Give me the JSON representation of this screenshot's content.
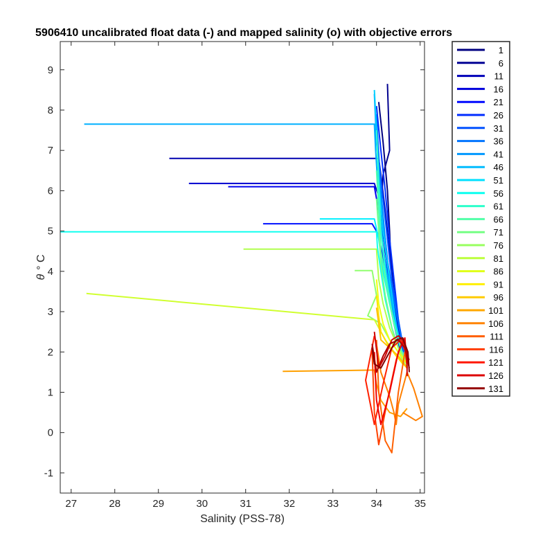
{
  "chart_data": {
    "type": "line",
    "title": "5906410 uncalibrated float data (-) and mapped salinity (o) with objective errors",
    "xlabel": "Salinity (PSS-78)",
    "ylabel_symbol": "θ",
    "ylabel_unit": "° C",
    "xlim": [
      26.75,
      35.1
    ],
    "ylim": [
      -1.5,
      9.7
    ],
    "xticks": [
      27,
      28,
      29,
      30,
      31,
      32,
      33,
      34,
      35
    ],
    "yticks": [
      -1,
      0,
      1,
      2,
      3,
      4,
      5,
      6,
      7,
      8,
      9
    ],
    "grid": false,
    "legend_position": "outside-right",
    "colormap": "jet",
    "series": [
      {
        "name": "1",
        "color": "#000080",
        "x": [
          34.05,
          34.15,
          34.25,
          34.3,
          34.32,
          34.35,
          34.4,
          34.45,
          34.5,
          34.55,
          34.6
        ],
        "y": [
          8.2,
          7.2,
          6.0,
          5.0,
          4.4,
          4.0,
          3.5,
          3.0,
          2.6,
          2.3,
          2.0
        ]
      },
      {
        "name": "6",
        "color": "#00008F",
        "x": [
          34.25,
          34.3,
          34.15,
          34.1,
          34.2,
          34.35,
          34.45,
          34.6
        ],
        "y": [
          8.65,
          7.0,
          6.4,
          5.5,
          4.5,
          3.5,
          2.8,
          2.0
        ]
      },
      {
        "name": "11",
        "color": "#0000AF",
        "x": [
          29.25,
          34.05,
          34.1,
          34.2,
          34.3,
          34.4,
          34.5,
          34.6
        ],
        "y": [
          6.8,
          6.8,
          6.4,
          5.5,
          4.5,
          3.4,
          2.6,
          1.9
        ]
      },
      {
        "name": "16",
        "color": "#0000CF",
        "x": [
          29.7,
          33.95,
          34.1,
          34.2,
          34.3,
          34.45,
          34.6
        ],
        "y": [
          6.18,
          6.18,
          5.7,
          4.8,
          3.8,
          2.8,
          1.9
        ]
      },
      {
        "name": "21",
        "color": "#0000EF",
        "x": [
          30.6,
          33.95,
          34.05,
          34.2,
          34.3,
          34.4,
          34.55
        ],
        "y": [
          6.1,
          6.1,
          5.5,
          4.6,
          3.6,
          2.8,
          2.0
        ]
      },
      {
        "name": "26",
        "color": "#0010FF",
        "x": [
          31.4,
          33.9,
          34.05,
          34.15,
          34.25,
          34.4,
          34.55
        ],
        "y": [
          5.18,
          5.18,
          4.9,
          4.3,
          3.5,
          2.7,
          2.0
        ]
      },
      {
        "name": "31",
        "color": "#0030FF",
        "x": [
          34.0,
          34.1,
          34.2,
          34.3,
          34.4,
          34.5,
          34.6
        ],
        "y": [
          8.1,
          7.0,
          6.0,
          4.8,
          3.8,
          2.8,
          2.0
        ]
      },
      {
        "name": "36",
        "color": "#0050FF",
        "x": [
          34.0,
          34.05,
          34.15,
          34.25,
          34.35,
          34.5,
          34.65
        ],
        "y": [
          7.9,
          6.8,
          5.8,
          4.8,
          3.8,
          2.8,
          1.9
        ]
      },
      {
        "name": "41",
        "color": "#0070FF",
        "x": [
          34.0,
          34.05,
          34.1,
          34.2,
          34.35,
          34.5,
          34.65
        ],
        "y": [
          7.7,
          6.9,
          5.8,
          4.6,
          3.6,
          2.7,
          1.9
        ]
      },
      {
        "name": "46",
        "color": "#0090FF",
        "x": [
          33.95,
          34.0,
          34.1,
          34.2,
          34.3,
          34.45,
          34.6
        ],
        "y": [
          8.4,
          7.2,
          6.0,
          4.8,
          3.7,
          2.7,
          1.9
        ]
      },
      {
        "name": "51",
        "color": "#00B0FF",
        "x": [
          27.3,
          33.95,
          33.98,
          34.05,
          34.15,
          34.3,
          34.45,
          34.6
        ],
        "y": [
          7.65,
          7.65,
          7.0,
          5.8,
          4.6,
          3.5,
          2.6,
          1.9
        ]
      },
      {
        "name": "56",
        "color": "#00D0FF",
        "x": [
          33.95,
          34.0,
          34.05,
          34.15,
          34.3,
          34.45,
          34.6
        ],
        "y": [
          8.5,
          7.5,
          6.2,
          5.0,
          3.8,
          2.7,
          1.9
        ]
      },
      {
        "name": "61",
        "color": "#00F0FF",
        "x": [
          32.7,
          33.95,
          34.05,
          34.15,
          34.3,
          34.45,
          34.6
        ],
        "y": [
          5.3,
          5.3,
          4.8,
          4.0,
          3.2,
          2.5,
          1.9
        ]
      },
      {
        "name": "66",
        "color": "#10FFEF",
        "x": [
          26.75,
          34.0,
          34.02,
          34.1,
          34.2,
          34.35,
          34.5,
          34.65
        ],
        "y": [
          4.98,
          4.98,
          4.6,
          4.0,
          3.3,
          2.6,
          2.1,
          1.8
        ]
      },
      {
        "name": "71",
        "color": "#30FFCF",
        "x": [
          34.0,
          34.05,
          34.1,
          34.2,
          34.35,
          34.5,
          34.65
        ],
        "y": [
          7.5,
          6.2,
          5.0,
          4.0,
          3.0,
          2.3,
          1.8
        ]
      },
      {
        "name": "76",
        "color": "#50FFAF",
        "x": [
          34.0,
          34.05,
          34.1,
          34.25,
          34.4,
          34.55,
          34.7
        ],
        "y": [
          6.5,
          5.5,
          4.5,
          3.5,
          2.7,
          2.1,
          1.7
        ]
      },
      {
        "name": "81",
        "color": "#70FF8F",
        "x": [
          34.0,
          34.05,
          34.1,
          34.2,
          34.35,
          34.5,
          34.65
        ],
        "y": [
          5.8,
          5.0,
          4.2,
          3.4,
          2.6,
          2.1,
          1.7
        ]
      },
      {
        "name": "86",
        "color": "#90FF6F",
        "x": [
          33.5,
          33.9,
          34.0,
          33.8,
          34.1,
          34.3,
          34.5,
          34.7
        ],
        "y": [
          4.02,
          4.02,
          3.4,
          2.9,
          2.7,
          2.3,
          2.0,
          1.6
        ]
      },
      {
        "name": "91",
        "color": "#B0FF4F",
        "x": [
          30.95,
          34.0,
          34.05,
          34.15,
          34.3,
          34.5,
          34.7
        ],
        "y": [
          4.55,
          4.55,
          3.8,
          3.2,
          2.6,
          2.1,
          1.7
        ]
      },
      {
        "name": "96",
        "color": "#D0FF2F",
        "x": [
          27.35,
          33.95,
          34.05,
          34.2,
          34.4,
          34.6
        ],
        "y": [
          3.45,
          2.8,
          2.6,
          2.3,
          2.0,
          1.7
        ]
      },
      {
        "name": "101",
        "color": "#F0FF0F",
        "x": [
          34.0,
          34.05,
          34.15,
          34.3,
          34.5,
          34.7
        ],
        "y": [
          3.8,
          3.2,
          2.7,
          2.3,
          2.0,
          1.7
        ]
      },
      {
        "name": "106",
        "color": "#FFE000",
        "x": [
          34.0,
          34.05,
          34.1,
          34.25,
          34.45,
          34.7
        ],
        "y": [
          3.4,
          2.9,
          2.5,
          2.2,
          1.9,
          1.6
        ]
      },
      {
        "name": "111",
        "color": "#FFC000",
        "x": [
          34.0,
          34.05,
          34.1,
          34.3,
          34.5,
          34.7
        ],
        "y": [
          3.1,
          2.7,
          2.3,
          2.1,
          1.9,
          1.6
        ]
      },
      {
        "name": "116",
        "color": "#FFA000",
        "x": [
          31.85,
          33.95,
          34.0,
          34.1,
          34.3,
          34.55,
          34.7
        ],
        "y": [
          1.52,
          1.55,
          1.2,
          0.8,
          0.5,
          0.4,
          0.6
        ]
      },
      {
        "name": "121",
        "color": "#FF8000",
        "x": [
          34.0,
          34.1,
          34.3,
          34.4,
          34.45,
          34.5,
          34.7,
          34.85,
          35.05,
          34.9,
          34.6
        ],
        "y": [
          2.2,
          1.5,
          0.9,
          0.5,
          0.2,
          0.7,
          1.5,
          1.1,
          0.4,
          0.3,
          0.5
        ]
      },
      {
        "name": "126",
        "color": "#FF6000",
        "x": [
          34.0,
          34.05,
          34.2,
          34.35,
          34.5,
          34.65,
          34.7
        ],
        "y": [
          2.3,
          1.0,
          -0.2,
          -0.5,
          1.0,
          2.0,
          1.7
        ]
      },
      {
        "name": "131",
        "color": "#FF4000",
        "x": [
          33.9,
          33.95,
          34.05,
          34.25,
          34.45,
          34.6,
          34.7
        ],
        "y": [
          2.0,
          0.5,
          -0.3,
          0.8,
          1.8,
          2.3,
          1.9
        ]
      },
      {
        "name": "",
        "color": "#FF2000",
        "x": [
          33.95,
          33.75,
          33.95,
          34.15,
          34.35,
          34.55,
          34.75
        ],
        "y": [
          2.4,
          1.3,
          0.2,
          1.2,
          2.1,
          2.3,
          1.8
        ]
      },
      {
        "name": "",
        "color": "#EF0000",
        "x": [
          33.95,
          34.0,
          34.1,
          34.3,
          34.5,
          34.65,
          34.7
        ],
        "y": [
          2.0,
          0.8,
          0.2,
          1.0,
          2.0,
          2.35,
          1.6
        ]
      },
      {
        "name": "",
        "color": "#CF0000",
        "x": [
          33.95,
          34.05,
          34.2,
          34.35,
          34.5,
          34.6,
          34.7,
          34.7
        ],
        "y": [
          2.5,
          1.6,
          1.9,
          2.3,
          2.4,
          2.3,
          2.0,
          1.4
        ]
      },
      {
        "name": "",
        "color": "#AF0000",
        "x": [
          33.9,
          34.0,
          34.15,
          34.3,
          34.5,
          34.65,
          34.75
        ],
        "y": [
          2.2,
          1.5,
          1.9,
          2.2,
          2.3,
          2.1,
          1.6
        ]
      },
      {
        "name": "",
        "color": "#800000",
        "x": [
          33.9,
          33.95,
          34.1,
          34.3,
          34.45,
          34.6,
          34.72,
          34.75
        ],
        "y": [
          2.1,
          1.7,
          1.6,
          2.0,
          2.3,
          2.35,
          2.0,
          1.5
        ]
      }
    ],
    "legend_entries": [
      {
        "label": "1",
        "color": "#000080"
      },
      {
        "label": "6",
        "color": "#000094"
      },
      {
        "label": "11",
        "color": "#0000B8"
      },
      {
        "label": "16",
        "color": "#0000DC"
      },
      {
        "label": "21",
        "color": "#0008FF"
      },
      {
        "label": "26",
        "color": "#002CFF"
      },
      {
        "label": "31",
        "color": "#0050FF"
      },
      {
        "label": "36",
        "color": "#0074FF"
      },
      {
        "label": "41",
        "color": "#0098FF"
      },
      {
        "label": "46",
        "color": "#00BCFF"
      },
      {
        "label": "51",
        "color": "#00E0FF"
      },
      {
        "label": "56",
        "color": "#08FFEF"
      },
      {
        "label": "61",
        "color": "#2CFFCB"
      },
      {
        "label": "66",
        "color": "#50FFA7"
      },
      {
        "label": "71",
        "color": "#74FF83"
      },
      {
        "label": "76",
        "color": "#98FF5F"
      },
      {
        "label": "81",
        "color": "#BCFF3B"
      },
      {
        "label": "86",
        "color": "#E0FF17"
      },
      {
        "label": "91",
        "color": "#FFEF00"
      },
      {
        "label": "96",
        "color": "#FFCB00"
      },
      {
        "label": "101",
        "color": "#FFA700"
      },
      {
        "label": "106",
        "color": "#FF8300"
      },
      {
        "label": "111",
        "color": "#FF5F00"
      },
      {
        "label": "116",
        "color": "#FF3B00"
      },
      {
        "label": "121",
        "color": "#FF1700"
      },
      {
        "label": "126",
        "color": "#DC0000"
      },
      {
        "label": "131",
        "color": "#940000"
      }
    ]
  }
}
